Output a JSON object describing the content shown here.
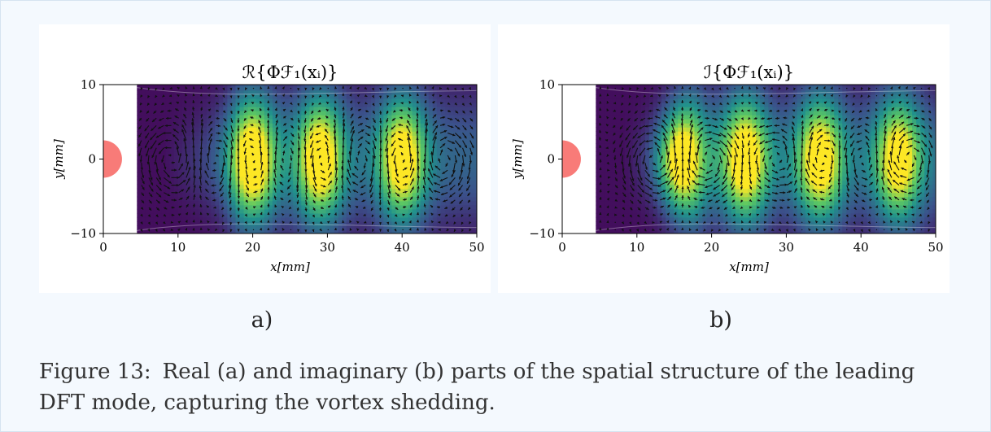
{
  "panels": [
    {
      "id": "a",
      "title": "ℛ{Φℱ₁(xᵢ)}",
      "xlabel": "x[mm]",
      "ylabel": "y[mm]",
      "sublabel": "a)"
    },
    {
      "id": "b",
      "title": "ℐ{Φℱ₁(xᵢ)}",
      "xlabel": "x[mm]",
      "ylabel": "y[mm]",
      "sublabel": "b)"
    }
  ],
  "chart_data": [
    {
      "type": "heatmap",
      "title": "ℛ{Φℱ₁(xᵢ)}",
      "xlabel": "x[mm]",
      "ylabel": "y[mm]",
      "xlim": [
        0,
        50
      ],
      "ylim": [
        -10,
        10
      ],
      "x_ticks": [
        0,
        10,
        20,
        30,
        40,
        50
      ],
      "y_ticks": [
        -10,
        0,
        10
      ],
      "colormap": "viridis",
      "cylinder_color": "#f87b78",
      "data_start_x": 4.5,
      "vortex_centers_x": [
        9.5,
        15.5,
        20,
        24.5,
        29,
        34.5,
        40,
        45
      ],
      "peak_x": [
        20,
        29,
        40
      ],
      "overlay": "velocity vectors"
    },
    {
      "type": "heatmap",
      "title": "ℐ{Φℱ₁(xᵢ)}",
      "xlabel": "x[mm]",
      "ylabel": "y[mm]",
      "xlim": [
        0,
        50
      ],
      "ylim": [
        -10,
        10
      ],
      "x_ticks": [
        0,
        10,
        20,
        30,
        40,
        50
      ],
      "y_ticks": [
        -10,
        0,
        10
      ],
      "colormap": "viridis",
      "cylinder_color": "#f87b78",
      "data_start_x": 4.5,
      "vortex_centers_x": [
        12.5,
        20,
        29,
        34.5,
        40,
        45
      ],
      "peak_x": [
        16,
        24.5,
        34.5,
        45
      ],
      "overlay": "velocity vectors"
    }
  ],
  "caption": {
    "number": "Figure 13:",
    "text": "Real (a) and imaginary (b) parts of the spatial structure of the leading DFT mode, capturing the vortex shedding."
  }
}
